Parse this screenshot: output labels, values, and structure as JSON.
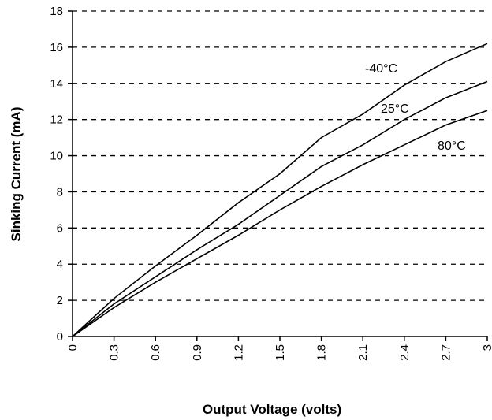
{
  "chart_data": {
    "type": "line",
    "title": "",
    "xlabel": "Output Voltage (volts)",
    "ylabel": "Sinking Current (mA)",
    "xlim": [
      0,
      3
    ],
    "ylim": [
      0,
      18
    ],
    "xticks": [
      "0",
      "0.3",
      "0.6",
      "0.9",
      "1.2",
      "1.5",
      "1.8",
      "2.1",
      "2.4",
      "2.7",
      "3"
    ],
    "yticks": [
      "0",
      "2",
      "4",
      "6",
      "8",
      "10",
      "12",
      "14",
      "16",
      "18"
    ],
    "grid": "horizontal-dashed",
    "legend": "inline-labels",
    "series": [
      {
        "name": "-40°C",
        "x": [
          0,
          0.3,
          0.6,
          0.9,
          1.2,
          1.5,
          1.8,
          2.1,
          2.4,
          2.7,
          3.0
        ],
        "y": [
          0,
          2.1,
          3.9,
          5.6,
          7.4,
          9.0,
          11.0,
          12.3,
          13.9,
          15.2,
          16.2
        ]
      },
      {
        "name": "25°C",
        "x": [
          0,
          0.3,
          0.6,
          0.9,
          1.2,
          1.5,
          1.8,
          2.1,
          2.4,
          2.7,
          3.0
        ],
        "y": [
          0,
          1.8,
          3.3,
          4.8,
          6.2,
          7.8,
          9.4,
          10.6,
          12.0,
          13.2,
          14.1
        ]
      },
      {
        "name": "80°C",
        "x": [
          0,
          0.3,
          0.6,
          0.9,
          1.2,
          1.5,
          1.8,
          2.1,
          2.4,
          2.7,
          3.0
        ],
        "y": [
          0,
          1.6,
          3.0,
          4.3,
          5.6,
          7.0,
          8.3,
          9.5,
          10.6,
          11.7,
          12.5
        ]
      }
    ]
  }
}
